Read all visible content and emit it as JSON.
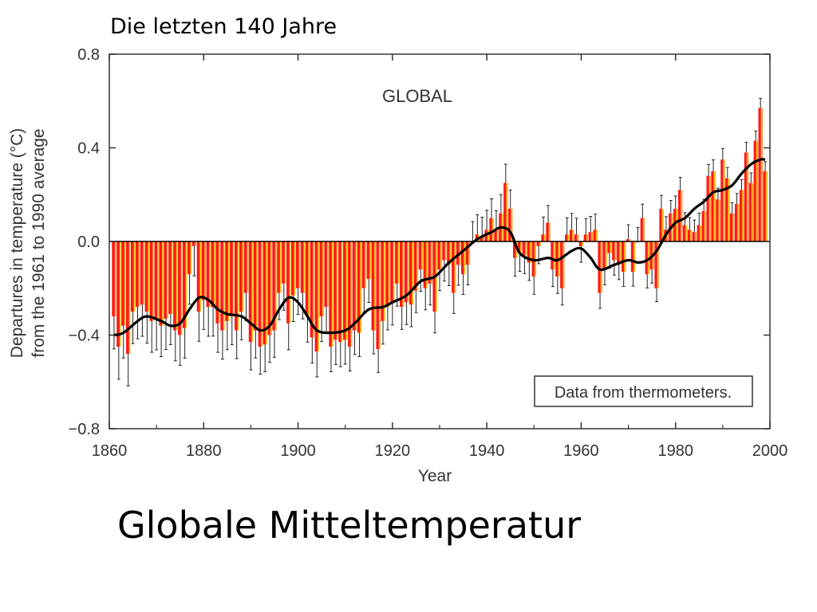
{
  "slide": {
    "top_caption": "Die letzten 140 Jahre",
    "bottom_caption": "Globale Mitteltemperatur"
  },
  "chart_data": {
    "type": "bar",
    "title": "GLOBAL",
    "xlabel": "Year",
    "ylabel_lines": [
      "Departures in temperature (°C)",
      "from the 1961 to 1990 average"
    ],
    "annotation": "Data from thermometers.",
    "xlim": [
      1860,
      2000
    ],
    "ylim": [
      -0.8,
      0.8
    ],
    "x_ticks": [
      1860,
      1880,
      1900,
      1920,
      1940,
      1960,
      1980,
      2000
    ],
    "y_ticks": [
      {
        "value": 0.8,
        "label": "0.8"
      },
      {
        "value": 0.4,
        "label": "0.4"
      },
      {
        "value": 0.0,
        "label": "0.0"
      },
      {
        "value": -0.4,
        "label": "−0.4"
      },
      {
        "value": -0.8,
        "label": "−0.8"
      }
    ],
    "colors": {
      "bar_fill": "#ff1a1a",
      "bar_stripe": "#ffd21a",
      "smooth_line": "#000000",
      "error_bar": "#222222",
      "zero_line": "#000000"
    },
    "years": [
      1861,
      1862,
      1863,
      1864,
      1865,
      1866,
      1867,
      1868,
      1869,
      1870,
      1871,
      1872,
      1873,
      1874,
      1875,
      1876,
      1877,
      1878,
      1879,
      1880,
      1881,
      1882,
      1883,
      1884,
      1885,
      1886,
      1887,
      1888,
      1889,
      1890,
      1891,
      1892,
      1893,
      1894,
      1895,
      1896,
      1897,
      1898,
      1899,
      1900,
      1901,
      1902,
      1903,
      1904,
      1905,
      1906,
      1907,
      1908,
      1909,
      1910,
      1911,
      1912,
      1913,
      1914,
      1915,
      1916,
      1917,
      1918,
      1919,
      1920,
      1921,
      1922,
      1923,
      1924,
      1925,
      1926,
      1927,
      1928,
      1929,
      1930,
      1931,
      1932,
      1933,
      1934,
      1935,
      1936,
      1937,
      1938,
      1939,
      1940,
      1941,
      1942,
      1943,
      1944,
      1945,
      1946,
      1947,
      1948,
      1949,
      1950,
      1951,
      1952,
      1953,
      1954,
      1955,
      1956,
      1957,
      1958,
      1959,
      1960,
      1961,
      1962,
      1963,
      1964,
      1965,
      1966,
      1967,
      1968,
      1969,
      1970,
      1971,
      1972,
      1973,
      1974,
      1975,
      1976,
      1977,
      1978,
      1979,
      1980,
      1981,
      1982,
      1983,
      1984,
      1985,
      1986,
      1987,
      1988,
      1989,
      1990,
      1991,
      1992,
      1993,
      1994,
      1995,
      1996,
      1997,
      1998,
      1999
    ],
    "anomalies": [
      -0.32,
      -0.45,
      -0.36,
      -0.48,
      -0.3,
      -0.28,
      -0.27,
      -0.3,
      -0.34,
      -0.33,
      -0.36,
      -0.33,
      -0.31,
      -0.38,
      -0.4,
      -0.37,
      -0.14,
      -0.02,
      -0.3,
      -0.25,
      -0.28,
      -0.28,
      -0.35,
      -0.38,
      -0.34,
      -0.32,
      -0.38,
      -0.3,
      -0.22,
      -0.43,
      -0.38,
      -0.45,
      -0.44,
      -0.4,
      -0.38,
      -0.22,
      -0.18,
      -0.35,
      -0.23,
      -0.2,
      -0.22,
      -0.32,
      -0.41,
      -0.47,
      -0.32,
      -0.28,
      -0.45,
      -0.42,
      -0.43,
      -0.42,
      -0.45,
      -0.38,
      -0.39,
      -0.2,
      -0.16,
      -0.38,
      -0.46,
      -0.34,
      -0.28,
      -0.26,
      -0.18,
      -0.28,
      -0.26,
      -0.27,
      -0.21,
      -0.12,
      -0.2,
      -0.18,
      -0.3,
      -0.12,
      -0.08,
      -0.1,
      -0.22,
      -0.1,
      -0.14,
      -0.1,
      0.0,
      0.03,
      0.02,
      0.05,
      0.1,
      0.05,
      0.12,
      0.25,
      0.14,
      -0.07,
      -0.05,
      -0.06,
      -0.09,
      -0.15,
      -0.02,
      0.03,
      0.08,
      -0.12,
      -0.15,
      -0.2,
      0.03,
      0.05,
      0.03,
      -0.02,
      0.03,
      0.04,
      0.05,
      -0.22,
      -0.12,
      -0.05,
      -0.08,
      -0.1,
      -0.13,
      0.01,
      -0.13,
      0.0,
      0.1,
      -0.14,
      -0.12,
      -0.2,
      0.14,
      0.05,
      0.12,
      0.14,
      0.22,
      0.07,
      0.05,
      0.04,
      0.07,
      0.13,
      0.28,
      0.3,
      0.18,
      0.35,
      0.27,
      0.12,
      0.16,
      0.22,
      0.38,
      0.25,
      0.43,
      0.57,
      0.3
    ],
    "smoothed": [
      {
        "year": 1861,
        "value": -0.4
      },
      {
        "year": 1863,
        "value": -0.39
      },
      {
        "year": 1866,
        "value": -0.34
      },
      {
        "year": 1868,
        "value": -0.32
      },
      {
        "year": 1871,
        "value": -0.34
      },
      {
        "year": 1873,
        "value": -0.36
      },
      {
        "year": 1875,
        "value": -0.35
      },
      {
        "year": 1877,
        "value": -0.29
      },
      {
        "year": 1879,
        "value": -0.24
      },
      {
        "year": 1881,
        "value": -0.25
      },
      {
        "year": 1883,
        "value": -0.29
      },
      {
        "year": 1885,
        "value": -0.31
      },
      {
        "year": 1888,
        "value": -0.32
      },
      {
        "year": 1890,
        "value": -0.35
      },
      {
        "year": 1892,
        "value": -0.38
      },
      {
        "year": 1894,
        "value": -0.36
      },
      {
        "year": 1896,
        "value": -0.29
      },
      {
        "year": 1898,
        "value": -0.24
      },
      {
        "year": 1900,
        "value": -0.26
      },
      {
        "year": 1902,
        "value": -0.32
      },
      {
        "year": 1904,
        "value": -0.38
      },
      {
        "year": 1907,
        "value": -0.39
      },
      {
        "year": 1910,
        "value": -0.38
      },
      {
        "year": 1912,
        "value": -0.35
      },
      {
        "year": 1915,
        "value": -0.29
      },
      {
        "year": 1918,
        "value": -0.28
      },
      {
        "year": 1920,
        "value": -0.26
      },
      {
        "year": 1923,
        "value": -0.23
      },
      {
        "year": 1926,
        "value": -0.17
      },
      {
        "year": 1929,
        "value": -0.15
      },
      {
        "year": 1932,
        "value": -0.09
      },
      {
        "year": 1935,
        "value": -0.04
      },
      {
        "year": 1938,
        "value": 0.01
      },
      {
        "year": 1941,
        "value": 0.04
      },
      {
        "year": 1943,
        "value": 0.06
      },
      {
        "year": 1945,
        "value": 0.04
      },
      {
        "year": 1947,
        "value": -0.05
      },
      {
        "year": 1950,
        "value": -0.08
      },
      {
        "year": 1953,
        "value": -0.07
      },
      {
        "year": 1955,
        "value": -0.08
      },
      {
        "year": 1958,
        "value": -0.04
      },
      {
        "year": 1960,
        "value": -0.03
      },
      {
        "year": 1962,
        "value": -0.07
      },
      {
        "year": 1964,
        "value": -0.12
      },
      {
        "year": 1967,
        "value": -0.1
      },
      {
        "year": 1970,
        "value": -0.08
      },
      {
        "year": 1972,
        "value": -0.09
      },
      {
        "year": 1974,
        "value": -0.08
      },
      {
        "year": 1976,
        "value": -0.04
      },
      {
        "year": 1978,
        "value": 0.03
      },
      {
        "year": 1980,
        "value": 0.08
      },
      {
        "year": 1982,
        "value": 0.1
      },
      {
        "year": 1984,
        "value": 0.14
      },
      {
        "year": 1986,
        "value": 0.17
      },
      {
        "year": 1988,
        "value": 0.21
      },
      {
        "year": 1990,
        "value": 0.22
      },
      {
        "year": 1992,
        "value": 0.24
      },
      {
        "year": 1994,
        "value": 0.29
      },
      {
        "year": 1996,
        "value": 0.33
      },
      {
        "year": 1998,
        "value": 0.35
      },
      {
        "year": 1999,
        "value": 0.35
      }
    ]
  }
}
